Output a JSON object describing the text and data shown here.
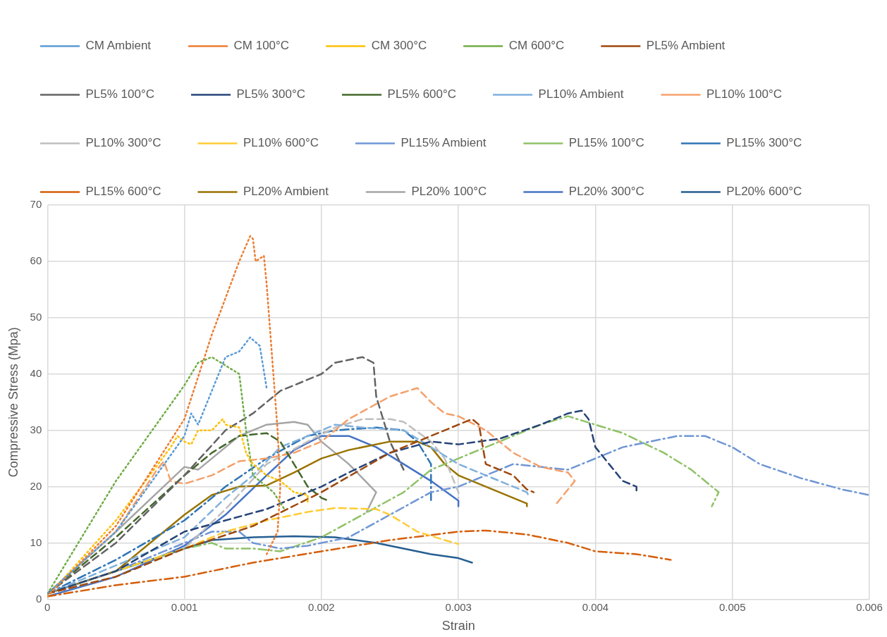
{
  "chart_data": {
    "type": "line",
    "xlabel": "Strain",
    "ylabel": "Compressive Stress (Mpa)",
    "xlim": [
      0,
      0.006
    ],
    "xticks": [
      0,
      0.001,
      0.002,
      0.003,
      0.004,
      0.005,
      0.006
    ],
    "ylim": [
      0,
      70
    ],
    "yticks": [
      0,
      10,
      20,
      30,
      40,
      50,
      60,
      70
    ],
    "grid": true,
    "legend": "top",
    "marker": "none",
    "series": [
      {
        "name": "CM Ambient",
        "color": "#5b9bd5",
        "line_style": "dotted",
        "x": [
          0,
          0.0005,
          0.001,
          0.00105,
          0.0011,
          0.0013,
          0.0014,
          0.00148,
          0.00155,
          0.0016
        ],
        "values": [
          1,
          12,
          29,
          33,
          31,
          43,
          44,
          46.5,
          45,
          37.5
        ]
      },
      {
        "name": "CM 100°C",
        "color": "#ed7d31",
        "line_style": "dotted",
        "x": [
          0,
          0.0005,
          0.001,
          0.0012,
          0.0014,
          0.00148,
          0.0015,
          0.00152,
          0.00158,
          0.0016,
          0.00168,
          0.0017,
          0.00168,
          0.0016
        ],
        "values": [
          0.5,
          13,
          32,
          47,
          60,
          64.5,
          64,
          60,
          61,
          56,
          30,
          20,
          12,
          8
        ]
      },
      {
        "name": "CM 300°C",
        "color": "#ffc000",
        "line_style": "dotted",
        "x": [
          0,
          0.0005,
          0.0009,
          0.00095,
          0.001,
          0.00105,
          0.0011,
          0.0012,
          0.00128,
          0.0013,
          0.0014,
          0.00145,
          0.0015,
          0.0016,
          0.0017,
          0.0018,
          0.0019,
          0.0019
        ],
        "values": [
          0.5,
          14,
          27,
          29,
          28,
          27.5,
          30,
          30,
          32,
          31,
          30.5,
          26,
          24,
          22,
          21,
          19,
          18.5,
          17
        ]
      },
      {
        "name": "CM 600°C",
        "color": "#70ad47",
        "line_style": "dotted",
        "x": [
          0,
          0.0005,
          0.001,
          0.0011,
          0.0012,
          0.0013,
          0.0014,
          0.00145,
          0.0015,
          0.00155,
          0.00165,
          0.00173
        ],
        "values": [
          1,
          21,
          38,
          42,
          43,
          41.5,
          40,
          30,
          22,
          21,
          19,
          16
        ]
      },
      {
        "name": "PL5% Ambient",
        "color": "#9e480e",
        "line_style": "dashed",
        "x": [
          0,
          0.0005,
          0.001,
          0.0015,
          0.002,
          0.0025,
          0.003,
          0.0031,
          0.00315,
          0.0032,
          0.0033,
          0.0034,
          0.0035,
          0.00355
        ],
        "values": [
          1,
          4,
          9,
          13,
          19,
          26,
          31,
          32,
          31,
          24,
          23,
          22,
          19.5,
          19
        ]
      },
      {
        "name": "PL5% 100°C",
        "color": "#636363",
        "line_style": "dashed",
        "x": [
          0,
          0.0005,
          0.001,
          0.0013,
          0.0015,
          0.0017,
          0.002,
          0.0021,
          0.0023,
          0.00238,
          0.0024,
          0.0025,
          0.0026
        ],
        "values": [
          1,
          10,
          22,
          30,
          33,
          37,
          40,
          42,
          43,
          42,
          36,
          28,
          23
        ]
      },
      {
        "name": "PL5% 300°C",
        "color": "#264478",
        "line_style": "dashed",
        "x": [
          0,
          0.0005,
          0.001,
          0.0013,
          0.0016,
          0.002,
          0.0022,
          0.0025,
          0.0028,
          0.003,
          0.0033,
          0.0036,
          0.0038,
          0.0039,
          0.00395,
          0.004,
          0.0041,
          0.0042,
          0.0043,
          0.0043
        ],
        "values": [
          1,
          5,
          12,
          14,
          16,
          20,
          22.5,
          26,
          28,
          27.5,
          28.5,
          31,
          33,
          33.5,
          32,
          27,
          24,
          21,
          20,
          19
        ]
      },
      {
        "name": "PL5% 600°C",
        "color": "#43682b",
        "line_style": "dashed",
        "x": [
          0,
          0.0005,
          0.001,
          0.0012,
          0.0014,
          0.0016,
          0.0017,
          0.0018,
          0.0019,
          0.002,
          0.00205
        ],
        "values": [
          1,
          11,
          22,
          26,
          29,
          29.5,
          28,
          24,
          20,
          18,
          17.5
        ]
      },
      {
        "name": "PL10% Ambient",
        "color": "#7fb0dc",
        "line_style": "dashed",
        "x": [
          0,
          0.0005,
          0.001,
          0.0013,
          0.0015,
          0.0017,
          0.0019,
          0.0021,
          0.0023,
          0.0026,
          0.0028,
          0.003,
          0.0033,
          0.0035,
          0.00352
        ],
        "values": [
          1,
          6,
          11,
          18,
          22,
          27,
          29,
          31,
          30.5,
          30,
          27,
          24,
          21,
          19,
          18
        ]
      },
      {
        "name": "PL10% 100°C",
        "color": "#f4a06b",
        "line_style": "dashed",
        "x": [
          0,
          0.0005,
          0.0008,
          0.00085,
          0.0009,
          0.001,
          0.0012,
          0.0014,
          0.0016,
          0.0018,
          0.002,
          0.0022,
          0.0025,
          0.0027,
          0.0028,
          0.0029,
          0.003,
          0.0032,
          0.0034,
          0.0036,
          0.0038,
          0.00385,
          0.0037
        ],
        "values": [
          1,
          12,
          23,
          24.5,
          21,
          20.5,
          22,
          24.5,
          25,
          26,
          28,
          32,
          36,
          37.5,
          35,
          33,
          32.5,
          30,
          26,
          23.5,
          22.5,
          21,
          16.5
        ]
      },
      {
        "name": "PL10% 300°C",
        "color": "#bfbfbf",
        "line_style": "dashed",
        "x": [
          0,
          0.0005,
          0.001,
          0.0013,
          0.0016,
          0.0019,
          0.0021,
          0.0023,
          0.0025,
          0.0026,
          0.0028,
          0.0029,
          0.003,
          0.003
        ],
        "values": [
          1,
          4,
          9,
          16,
          24,
          28,
          30.5,
          32,
          32,
          31.5,
          28,
          25,
          19,
          18
        ]
      },
      {
        "name": "PL10% 600°C",
        "color": "#ffcc33",
        "line_style": "dashed",
        "x": [
          0,
          0.0005,
          0.001,
          0.0013,
          0.0016,
          0.0019,
          0.0021,
          0.0024,
          0.0025,
          0.0027,
          0.0029,
          0.003
        ],
        "values": [
          1,
          5,
          9,
          12,
          14,
          15.5,
          16.2,
          16,
          15,
          12,
          10.5,
          9.8
        ]
      },
      {
        "name": "PL15% Ambient",
        "color": "#6f96d6",
        "line_style": "dashdot",
        "x": [
          0,
          0.0005,
          0.001,
          0.0012,
          0.0014,
          0.0015,
          0.0017,
          0.0019,
          0.0022,
          0.0025,
          0.0028,
          0.003,
          0.0032,
          0.0034,
          0.0036,
          0.0038,
          0.004,
          0.0042,
          0.0044,
          0.0046,
          0.0048,
          0.005,
          0.0052,
          0.0055,
          0.0058,
          0.006
        ],
        "values": [
          1,
          5,
          10,
          12,
          12,
          10,
          9,
          9.5,
          11,
          15,
          19,
          20,
          22,
          24,
          23.5,
          23,
          25,
          27,
          28,
          29,
          29,
          27,
          24,
          21.5,
          19.5,
          18.5
        ]
      },
      {
        "name": "PL15% 100°C",
        "color": "#8fc267",
        "line_style": "dashdot",
        "x": [
          0,
          0.0005,
          0.001,
          0.0012,
          0.0013,
          0.0015,
          0.0017,
          0.002,
          0.0023,
          0.0026,
          0.0028,
          0.003,
          0.0033,
          0.0036,
          0.0038,
          0.004,
          0.0042,
          0.0045,
          0.0047,
          0.0048,
          0.0049,
          0.00485
        ],
        "values": [
          1,
          5,
          9,
          10,
          9,
          9,
          8.5,
          11,
          15,
          19,
          23,
          25,
          28,
          31,
          32.5,
          31,
          29.5,
          26,
          23,
          21,
          19,
          16.5
        ]
      },
      {
        "name": "PL15% 300°C",
        "color": "#2e75b6",
        "line_style": "dashdot",
        "x": [
          0,
          0.0005,
          0.001,
          0.0013,
          0.0016,
          0.0019,
          0.0021,
          0.0024,
          0.0026,
          0.0027,
          0.0028,
          0.0028
        ],
        "values": [
          1,
          7,
          14,
          20,
          25,
          29,
          30,
          30.5,
          30,
          28,
          24,
          17
        ]
      },
      {
        "name": "PL15% 600°C",
        "color": "#d55e0a",
        "line_style": "dashdot",
        "x": [
          0,
          0.0005,
          0.001,
          0.0015,
          0.002,
          0.0025,
          0.003,
          0.0032,
          0.0035,
          0.0038,
          0.004,
          0.0043,
          0.00455
        ],
        "values": [
          0.5,
          2.5,
          4,
          6.5,
          8.5,
          10.5,
          12,
          12.2,
          11.5,
          10,
          8.5,
          8,
          7
        ]
      },
      {
        "name": "PL20% Ambient",
        "color": "#997300",
        "line_style": "solid",
        "x": [
          0,
          0.0005,
          0.001,
          0.0012,
          0.0014,
          0.0016,
          0.0018,
          0.002,
          0.0022,
          0.0025,
          0.0027,
          0.0028,
          0.0029,
          0.003,
          0.0032,
          0.0034,
          0.0035,
          0.0035
        ],
        "values": [
          1,
          5,
          15,
          18.5,
          20,
          20.2,
          22.5,
          25,
          26.5,
          28,
          28,
          27,
          24,
          22,
          20,
          18,
          17,
          16.5
        ]
      },
      {
        "name": "PL20% 100°C",
        "color": "#a5a5a5",
        "line_style": "solid",
        "x": [
          0,
          0.0005,
          0.001,
          0.0011,
          0.0012,
          0.0014,
          0.0016,
          0.0018,
          0.0019,
          0.002,
          0.0022,
          0.0024,
          0.00233
        ],
        "values": [
          1,
          12,
          23.5,
          23,
          25,
          29,
          31,
          31.5,
          31,
          28,
          24,
          19,
          15.5
        ]
      },
      {
        "name": "PL20% 300°C",
        "color": "#4472c4",
        "line_style": "solid",
        "x": [
          0,
          0.0005,
          0.001,
          0.0013,
          0.0016,
          0.0018,
          0.002,
          0.0022,
          0.0024,
          0.0026,
          0.0028,
          0.003,
          0.003
        ],
        "values": [
          0.5,
          4,
          9.5,
          15,
          22,
          26.5,
          29,
          29,
          27,
          24,
          21,
          17.5,
          16.5
        ]
      },
      {
        "name": "PL20% 600°C",
        "color": "#255e91",
        "line_style": "solid",
        "x": [
          0,
          0.0005,
          0.001,
          0.0012,
          0.0015,
          0.0018,
          0.0021,
          0.0024,
          0.0026,
          0.0028,
          0.003,
          0.0031
        ],
        "values": [
          1,
          5,
          9,
          10.5,
          11,
          11.2,
          11,
          10,
          9,
          8,
          7.3,
          6.5
        ]
      }
    ]
  }
}
